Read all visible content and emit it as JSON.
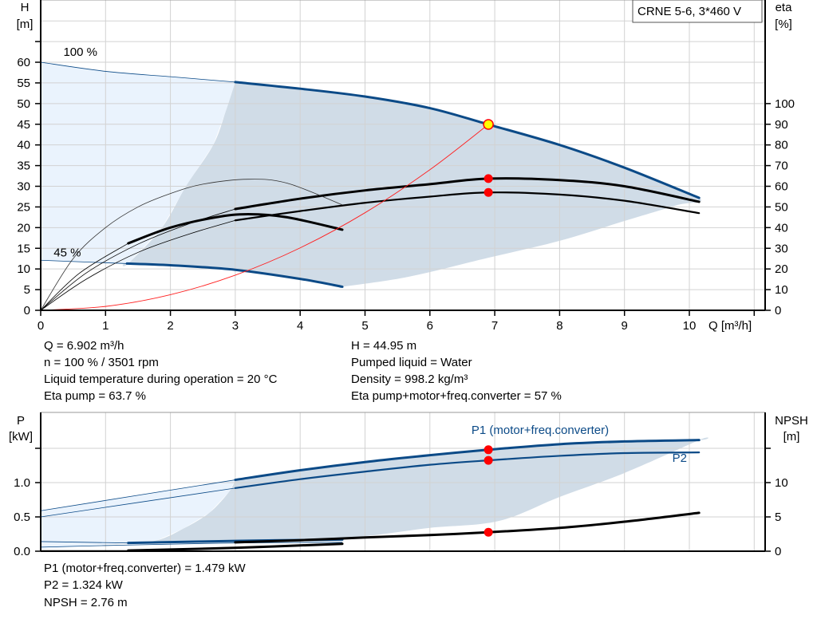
{
  "chart_data": [
    {
      "type": "line",
      "title": "CRNE 5-6, 3*460 V",
      "xlabel": "Q [m³/h]",
      "ylabel_left": "H\n[m]",
      "ylabel_left_parts": [
        "H",
        "[m]"
      ],
      "ylabel_right_parts": [
        "eta",
        "[%]"
      ],
      "xlim": [
        0,
        11
      ],
      "ylim_left": [
        0,
        70
      ],
      "ylim_right": [
        0,
        140
      ],
      "x_ticks": [
        "0",
        "1",
        "2",
        "3",
        "4",
        "5",
        "6",
        "7",
        "8",
        "9",
        "10"
      ],
      "y_ticks_left": [
        "0",
        "5",
        "10",
        "15",
        "20",
        "25",
        "30",
        "35",
        "40",
        "45",
        "50",
        "55",
        "60"
      ],
      "y_ticks_right": [
        "0",
        "10",
        "20",
        "30",
        "40",
        "50",
        "60",
        "70",
        "80",
        "90",
        "100"
      ],
      "grid": true,
      "speed_labels": [
        {
          "text": "100 %",
          "q": 0.35,
          "h": 61.5
        },
        {
          "text": "45 %",
          "q": 0.2,
          "h": 13
        }
      ],
      "series": [
        {
          "id": "h100",
          "axis": "H",
          "color": "#0b4a87",
          "q": [
            0,
            1,
            2,
            3,
            4,
            5,
            6,
            6.902,
            8,
            9,
            10.15
          ],
          "values": [
            60,
            57.8,
            56.5,
            55.2,
            53.6,
            51.7,
            48.9,
            44.95,
            40,
            34.5,
            27.2
          ],
          "bold_from": 3
        },
        {
          "id": "h45",
          "axis": "H",
          "color": "#0b4a87",
          "q": [
            0,
            1.33,
            2,
            3,
            4,
            4.65
          ],
          "values": [
            12.1,
            11.3,
            10.9,
            9.8,
            7.6,
            5.7
          ],
          "bold_from": 1.33
        },
        {
          "id": "eta_pump",
          "axis": "eta",
          "color": "#000000",
          "q": [
            0,
            0.7,
            1.5,
            2.3,
            3,
            4,
            5,
            6,
            6.902,
            8,
            9,
            10.15
          ],
          "values": [
            0,
            18,
            32,
            42,
            49,
            54,
            58,
            61,
            63.7,
            63,
            60,
            52.5
          ],
          "bold_from": 3
        },
        {
          "id": "eta_total",
          "axis": "eta",
          "color": "#000000",
          "q": [
            0,
            0.7,
            1.5,
            2.3,
            3,
            4,
            5,
            6,
            6.902,
            8,
            9,
            10.15
          ],
          "values": [
            0,
            15,
            28,
            37,
            43.5,
            48,
            52,
            55,
            57,
            56,
            53,
            47
          ],
          "bold_from": 3
        },
        {
          "id": "eta_45",
          "axis": "eta",
          "color": "#000000",
          "q": [
            0,
            0.6,
            1.35,
            2,
            2.7,
            3.2,
            3.8,
            4.65
          ],
          "values": [
            0,
            18,
            32.4,
            40,
            45,
            46.5,
            45,
            39
          ],
          "bold_from": 1.35
        },
        {
          "id": "eta_45_ext",
          "axis": "eta",
          "color": "#333333",
          "q": [
            0,
            0.5,
            1,
            1.5,
            2,
            2.5,
            3.2,
            3.8,
            4.65
          ],
          "values": [
            0,
            25,
            40,
            50,
            56.5,
            61,
            63.4,
            61.5,
            51
          ],
          "bold_from": 99
        },
        {
          "id": "system",
          "axis": "H",
          "color": "#ff2020",
          "q": [
            0,
            1,
            2,
            3,
            4,
            5,
            6,
            6.902
          ],
          "values": [
            0,
            0.94,
            3.78,
            8.5,
            15.1,
            23.6,
            34,
            44.95
          ],
          "bold_from": 99
        }
      ],
      "operating_points": [
        {
          "q": 6.902,
          "axis": "H",
          "value": 44.95,
          "color": "#ffff00"
        },
        {
          "q": 6.902,
          "axis": "eta",
          "value": 63.7,
          "color": "#ff0000"
        },
        {
          "q": 6.902,
          "axis": "eta",
          "value": 57,
          "color": "#ff0000"
        }
      ],
      "operating_range": {
        "light_color": "#eaf3fd",
        "dark_color": "#d0dce7",
        "left_edge": [
          [
            3,
            55.2
          ],
          [
            2.85,
            48
          ],
          [
            2.66,
            40
          ],
          [
            2.24,
            30
          ],
          [
            1.87,
            20
          ],
          [
            1.35,
            11.3
          ]
        ],
        "lower_edge": [
          [
            4.65,
            5.7
          ],
          [
            5.67,
            8.1
          ],
          [
            6.9,
            12.7
          ],
          [
            8,
            16.8
          ],
          [
            9,
            21.6
          ],
          [
            9.8,
            25.4
          ]
        ]
      }
    },
    {
      "type": "line",
      "ylabel_left_parts": [
        "P",
        "[kW]"
      ],
      "ylabel_right_parts": [
        "NPSH",
        "[m]"
      ],
      "xlim": [
        0,
        11
      ],
      "ylim_left": [
        0,
        2.0
      ],
      "ylim_right": [
        0,
        20
      ],
      "y_ticks_left": [
        "0.0",
        "0.5",
        "1.0"
      ],
      "y_ticks_right": [
        "0",
        "5",
        "10"
      ],
      "grid": true,
      "series_labels": [
        {
          "text": "P1 (motor+freq.converter)",
          "q": 7.7,
          "p": 1.71
        },
        {
          "text": "P2",
          "q": 9.85,
          "p": 1.3
        }
      ],
      "series": [
        {
          "id": "p1",
          "axis": "P",
          "color": "#0b4a87",
          "q": [
            0,
            3,
            4,
            5,
            6,
            6.902,
            8,
            9,
            10.15
          ],
          "values": [
            0.59,
            1.04,
            1.18,
            1.3,
            1.4,
            1.479,
            1.56,
            1.6,
            1.62
          ],
          "bold_from": 3
        },
        {
          "id": "p2",
          "axis": "P",
          "color": "#0b4a87",
          "q": [
            0,
            3,
            4,
            5,
            6,
            6.902,
            8,
            9,
            10.15
          ],
          "values": [
            0.5,
            0.92,
            1.05,
            1.16,
            1.26,
            1.324,
            1.39,
            1.43,
            1.44
          ],
          "bold_from": 3
        },
        {
          "id": "p1_45",
          "axis": "P",
          "color": "#0b4a87",
          "q": [
            0,
            1.35,
            3,
            4.65
          ],
          "values": [
            0.14,
            0.12,
            0.15,
            0.17
          ],
          "bold_from": 1.35
        },
        {
          "id": "p2_45",
          "axis": "P",
          "color": "#0b4a87",
          "q": [
            0,
            1.35,
            3,
            4.65
          ],
          "values": [
            0.06,
            0.09,
            0.12,
            0.13
          ],
          "bold_from": 99
        },
        {
          "id": "npsh",
          "axis": "NPSH",
          "color": "#000000",
          "q": [
            3,
            4,
            5,
            6,
            6.902,
            8,
            9,
            10.15
          ],
          "values": [
            1.3,
            1.6,
            2.0,
            2.35,
            2.76,
            3.4,
            4.3,
            5.6
          ],
          "bold_from": 3
        },
        {
          "id": "npsh_45",
          "axis": "NPSH",
          "color": "#000000",
          "q": [
            0,
            1.35,
            3,
            4.65
          ],
          "values": [
            0.1,
            0.1,
            0.5,
            1.08
          ],
          "bold_from": 1.35
        }
      ],
      "operating_points": [
        {
          "q": 6.902,
          "axis": "P",
          "value": 1.479,
          "color": "#ff0000"
        },
        {
          "q": 6.902,
          "axis": "P",
          "value": 1.324,
          "color": "#ff0000"
        },
        {
          "q": 6.902,
          "axis": "NPSH",
          "value": 2.76,
          "color": "#ff0000"
        }
      ],
      "operating_range": {
        "left_edge": [
          [
            3,
            1.04
          ],
          [
            2.9,
            0.86
          ],
          [
            2.6,
            0.56
          ],
          [
            2.2,
            0.33
          ],
          [
            1.8,
            0.16
          ],
          [
            1.35,
            0.12
          ]
        ],
        "lower_edge": [
          [
            1.35,
            0.12
          ],
          [
            4,
            0.17
          ],
          [
            5,
            0.22
          ],
          [
            6,
            0.34
          ],
          [
            7.06,
            0.44
          ],
          [
            8,
            0.79
          ],
          [
            9,
            1.14
          ],
          [
            10.15,
            1.62
          ]
        ]
      }
    }
  ],
  "duty_point": {
    "left": [
      "Q = 6.902 m³/h",
      "n = 100 % / 3501 rpm",
      "Liquid temperature during operation = 20 °C",
      "Eta pump = 63.7 %"
    ],
    "right": [
      "H = 44.95 m",
      "Pumped liquid = Water",
      "Density = 998.2 kg/m³",
      "Eta pump+motor+freq.converter = 57 %"
    ],
    "power": [
      "P1 (motor+freq.converter) = 1.479 kW",
      "P2 = 1.324 kW",
      "NPSH = 2.76 m"
    ]
  }
}
